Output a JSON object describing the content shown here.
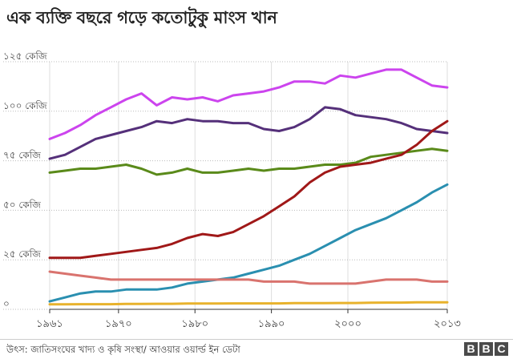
{
  "title": "এক ব্যক্তি বছরে গড়ে কতোটুকু মাংস খান",
  "source": "উৎস: জাতিসংঘের খাদ্য ও কৃষি সংস্থা/ আওয়ার ওয়ার্ল্ড ইন ডেটা",
  "logo": [
    "B",
    "B",
    "C"
  ],
  "chart_data": {
    "type": "line",
    "title": "এক ব্যক্তি বছরে গড়ে কতোটুকু মাংস খান",
    "xlabel": "",
    "ylabel": "",
    "xlim": [
      1961,
      2013
    ],
    "ylim": [
      0,
      125
    ],
    "x_ticks": [
      "১৯৬১",
      "১৯৭০",
      "১৯৮০",
      "১৯৯০",
      "২০০০",
      "২০১৩"
    ],
    "x_tick_values": [
      1961,
      1970,
      1980,
      1990,
      2000,
      2013
    ],
    "y_ticks": [
      "০",
      "২৫ কেজি",
      "৫০ কেজি",
      "৭৫ কেজি",
      "১০০ কেজি",
      "১২৫ কেজি"
    ],
    "y_tick_values": [
      0,
      25,
      50,
      75,
      100,
      125
    ],
    "grid": "x",
    "x": [
      1961,
      1963,
      1965,
      1967,
      1969,
      1971,
      1973,
      1975,
      1977,
      1979,
      1981,
      1983,
      1985,
      1987,
      1989,
      1991,
      1993,
      1995,
      1997,
      1999,
      2001,
      2003,
      2005,
      2007,
      2009,
      2011,
      2013
    ],
    "series": [
      {
        "name": "",
        "label": "",
        "color": "#cc44ee",
        "values": [
          86,
          89,
          93,
          98,
          102,
          106,
          109,
          103,
          107,
          106,
          107,
          105,
          108,
          109,
          110,
          112,
          115,
          115,
          114,
          118,
          117,
          119,
          121,
          121,
          117,
          113,
          112
        ]
      },
      {
        "name": "",
        "label": "",
        "color": "#55307a",
        "values": [
          76,
          78,
          82,
          86,
          88,
          90,
          92,
          95,
          94,
          96,
          95,
          95,
          94,
          94,
          91,
          90,
          92,
          96,
          102,
          101,
          98,
          97,
          96,
          94,
          91,
          90,
          89
        ]
      },
      {
        "name": "",
        "label": "",
        "color": "#5a8a1a",
        "values": [
          69,
          70,
          71,
          71,
          72,
          73,
          71,
          68,
          69,
          71,
          69,
          69,
          70,
          71,
          70,
          71,
          71,
          72,
          73,
          73,
          74,
          77,
          78,
          79,
          80,
          81,
          80
        ]
      },
      {
        "name": "",
        "label": "",
        "color": "#a01818",
        "values": [
          26,
          26,
          26,
          27,
          28,
          29,
          30,
          31,
          33,
          36,
          38,
          37,
          39,
          43,
          47,
          52,
          57,
          64,
          69,
          72,
          73,
          74,
          76,
          78,
          83,
          90,
          95
        ]
      },
      {
        "name": "",
        "label": "",
        "color": "#2a8fb0",
        "values": [
          4,
          6,
          8,
          9,
          9,
          10,
          10,
          10,
          11,
          13,
          14,
          15,
          16,
          18,
          20,
          22,
          25,
          28,
          32,
          36,
          40,
          43,
          46,
          50,
          54,
          59,
          63
        ]
      },
      {
        "name": "",
        "label": "",
        "color": "#d9736e",
        "values": [
          19,
          18,
          17,
          16,
          15,
          15,
          15,
          15,
          15,
          15,
          15,
          15,
          15,
          15,
          14,
          14,
          14,
          13,
          13,
          13,
          13,
          14,
          15,
          15,
          15,
          14,
          14
        ]
      },
      {
        "name": "",
        "label": "",
        "color": "#e8b22c",
        "values": [
          2.5,
          2.5,
          2.6,
          2.6,
          2.6,
          2.7,
          2.7,
          2.8,
          2.8,
          2.9,
          2.9,
          2.9,
          3.0,
          3.0,
          3.0,
          3.0,
          3.1,
          3.1,
          3.1,
          3.2,
          3.2,
          3.3,
          3.4,
          3.4,
          3.5,
          3.5,
          3.5
        ]
      }
    ]
  }
}
